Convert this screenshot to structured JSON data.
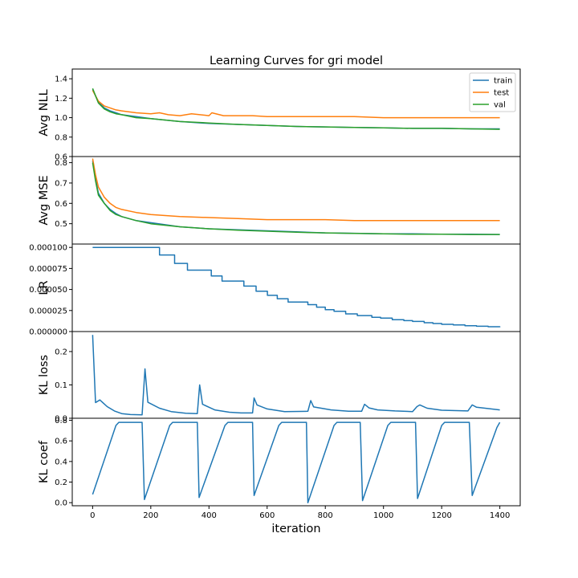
{
  "chart_data": {
    "type": "line",
    "title": "Learning Curves for gri model",
    "xlabel": "iteration",
    "xlim": [
      -70,
      1470
    ],
    "xticks": [
      0,
      200,
      400,
      600,
      800,
      1000,
      1200,
      1400
    ],
    "xtick_labels": [
      "0",
      "200",
      "400",
      "600",
      "800",
      "1000",
      "1200",
      "1400"
    ],
    "legend": {
      "location": "upper right",
      "entries": [
        "train",
        "test",
        "val"
      ]
    },
    "colors": {
      "train": "#1f77b4",
      "test": "#ff7f0e",
      "val": "#2ca02c",
      "frame": "#000000"
    },
    "panels": [
      {
        "id": "nll",
        "ylabel": "Avg NLL",
        "ylim": [
          0.6,
          1.5
        ],
        "yticks": [
          0.6,
          0.8,
          1.0,
          1.2,
          1.4
        ],
        "ytick_labels": [
          "0.6",
          "0.8",
          "1.0",
          "1.2",
          "1.4"
        ],
        "series": [
          {
            "name": "train",
            "x": [
              0,
              20,
              40,
              60,
              80,
              100,
              150,
              200,
              300,
              400,
              500,
              600,
              700,
              800,
              900,
              1000,
              1100,
              1200,
              1300,
              1400
            ],
            "y": [
              1.29,
              1.16,
              1.1,
              1.07,
              1.05,
              1.03,
              1.01,
              0.99,
              0.96,
              0.94,
              0.93,
              0.92,
              0.91,
              0.905,
              0.9,
              0.895,
              0.89,
              0.89,
              0.885,
              0.885
            ]
          },
          {
            "name": "test",
            "x": [
              0,
              20,
              40,
              60,
              80,
              100,
              150,
              200,
              230,
              260,
              300,
              340,
              400,
              410,
              450,
              500,
              550,
              600,
              700,
              800,
              900,
              1000,
              1100,
              1200,
              1300,
              1400
            ],
            "y": [
              1.28,
              1.17,
              1.12,
              1.1,
              1.08,
              1.07,
              1.05,
              1.04,
              1.05,
              1.03,
              1.02,
              1.04,
              1.02,
              1.05,
              1.02,
              1.02,
              1.02,
              1.01,
              1.01,
              1.01,
              1.01,
              1.0,
              1.0,
              1.0,
              1.0,
              1.0
            ]
          },
          {
            "name": "val",
            "x": [
              0,
              20,
              40,
              60,
              80,
              100,
              150,
              200,
              300,
              400,
              500,
              600,
              700,
              800,
              900,
              1000,
              1100,
              1200,
              1300,
              1400
            ],
            "y": [
              1.3,
              1.15,
              1.09,
              1.06,
              1.04,
              1.03,
              1.0,
              0.99,
              0.96,
              0.945,
              0.93,
              0.92,
              0.91,
              0.905,
              0.9,
              0.895,
              0.89,
              0.89,
              0.885,
              0.88
            ]
          }
        ]
      },
      {
        "id": "mse",
        "ylabel": "Avg MSE",
        "ylim": [
          0.4,
          0.83
        ],
        "yticks": [
          0.5,
          0.6,
          0.7,
          0.8
        ],
        "ytick_labels": [
          "0.5",
          "0.6",
          "0.7",
          "0.8"
        ],
        "series": [
          {
            "name": "train",
            "x": [
              0,
              10,
              20,
              40,
              60,
              80,
              100,
              150,
              200,
              300,
              400,
              500,
              600,
              700,
              800,
              900,
              1000,
              1100,
              1200,
              1300,
              1400
            ],
            "y": [
              0.81,
              0.72,
              0.65,
              0.6,
              0.57,
              0.55,
              0.535,
              0.515,
              0.505,
              0.485,
              0.475,
              0.47,
              0.465,
              0.46,
              0.455,
              0.453,
              0.45,
              0.45,
              0.448,
              0.448,
              0.447
            ]
          },
          {
            "name": "test",
            "x": [
              0,
              10,
              20,
              40,
              60,
              80,
              100,
              150,
              200,
              300,
              400,
              500,
              600,
              700,
              800,
              900,
              1000,
              1100,
              1200,
              1300,
              1400
            ],
            "y": [
              0.82,
              0.74,
              0.68,
              0.63,
              0.6,
              0.58,
              0.57,
              0.555,
              0.545,
              0.535,
              0.53,
              0.525,
              0.52,
              0.52,
              0.52,
              0.515,
              0.515,
              0.515,
              0.515,
              0.515,
              0.515
            ]
          },
          {
            "name": "val",
            "x": [
              0,
              10,
              20,
              40,
              60,
              80,
              100,
              150,
              200,
              300,
              400,
              500,
              600,
              700,
              800,
              900,
              1000,
              1100,
              1200,
              1300,
              1400
            ],
            "y": [
              0.8,
              0.71,
              0.64,
              0.6,
              0.565,
              0.545,
              0.535,
              0.515,
              0.5,
              0.485,
              0.475,
              0.468,
              0.463,
              0.458,
              0.455,
              0.452,
              0.45,
              0.448,
              0.448,
              0.447,
              0.447
            ]
          }
        ]
      },
      {
        "id": "lr",
        "ylabel": "LR",
        "ylim": [
          0,
          0.000104
        ],
        "yticks": [
          0,
          2.5e-05,
          5e-05,
          7.5e-05,
          0.0001
        ],
        "ytick_labels": [
          "0.000000",
          "0.000025",
          "0.000050",
          "0.000075",
          "0.000100"
        ],
        "series": [
          {
            "name": "train",
            "step": true,
            "x": [
              0,
              230,
              282,
              326,
              408,
              445,
              520,
              562,
              601,
              635,
              672,
              740,
              770,
              800,
              830,
              870,
              910,
              960,
              990,
              1030,
              1070,
              1100,
              1140,
              1170,
              1200,
              1240,
              1280,
              1320,
              1360,
              1400
            ],
            "y": [
              0.0001,
              9.1e-05,
              8.1e-05,
              7.3e-05,
              6.6e-05,
              6e-05,
              5.4e-05,
              4.8e-05,
              4.3e-05,
              3.9e-05,
              3.5e-05,
              3.2e-05,
              2.9e-05,
              2.6e-05,
              2.4e-05,
              2.1e-05,
              1.9e-05,
              1.7e-05,
              1.6e-05,
              1.4e-05,
              1.3e-05,
              1.2e-05,
              1.05e-05,
              9.5e-06,
              8.6e-06,
              7.8e-06,
              7e-06,
              6.3e-06,
              5.7e-06,
              5.2e-06
            ]
          }
        ]
      },
      {
        "id": "kl",
        "ylabel": "KL loss",
        "ylim": [
          0,
          0.26
        ],
        "yticks": [
          0.0,
          0.1,
          0.2
        ],
        "ytick_labels": [
          "0.0",
          "0.1",
          "0.2"
        ],
        "series": [
          {
            "name": "train",
            "x": [
              0,
              10,
              25,
              50,
              75,
              100,
              130,
              170,
              180,
              190,
              230,
              270,
              320,
              360,
              368,
              378,
              420,
              470,
              510,
              550,
              555,
              565,
              600,
              660,
              740,
              750,
              760,
              820,
              880,
              925,
              935,
              950,
              980,
              1040,
              1100,
              1115,
              1125,
              1150,
              1200,
              1290,
              1305,
              1320,
              1400
            ],
            "y": [
              0.25,
              0.047,
              0.055,
              0.035,
              0.022,
              0.014,
              0.011,
              0.01,
              0.148,
              0.048,
              0.03,
              0.02,
              0.015,
              0.014,
              0.1,
              0.042,
              0.025,
              0.018,
              0.016,
              0.016,
              0.061,
              0.04,
              0.028,
              0.02,
              0.021,
              0.053,
              0.034,
              0.025,
              0.021,
              0.021,
              0.042,
              0.031,
              0.025,
              0.022,
              0.02,
              0.035,
              0.04,
              0.03,
              0.024,
              0.022,
              0.04,
              0.033,
              0.025
            ]
          }
        ]
      },
      {
        "id": "klcoef",
        "ylabel": "KL coef",
        "ylim": [
          -0.03,
          0.82
        ],
        "yticks": [
          0.0,
          0.2,
          0.4,
          0.6,
          0.8
        ],
        "ytick_labels": [
          "0.0",
          "0.2",
          "0.4",
          "0.6",
          "0.8"
        ],
        "series": [
          {
            "name": "train",
            "x": [
              0,
              80,
              90,
              170,
              178,
              265,
              275,
              360,
              366,
              455,
              465,
              550,
              555,
              640,
              650,
              735,
              740,
              830,
              840,
              920,
              928,
              1015,
              1025,
              1110,
              1117,
              1200,
              1210,
              1295,
              1305,
              1390,
              1400
            ],
            "y": [
              0.08,
              0.75,
              0.78,
              0.78,
              0.03,
              0.75,
              0.78,
              0.78,
              0.05,
              0.75,
              0.78,
              0.78,
              0.07,
              0.75,
              0.78,
              0.78,
              0.0,
              0.75,
              0.78,
              0.78,
              0.02,
              0.75,
              0.78,
              0.78,
              0.04,
              0.75,
              0.78,
              0.78,
              0.07,
              0.73,
              0.78
            ]
          }
        ]
      }
    ]
  }
}
